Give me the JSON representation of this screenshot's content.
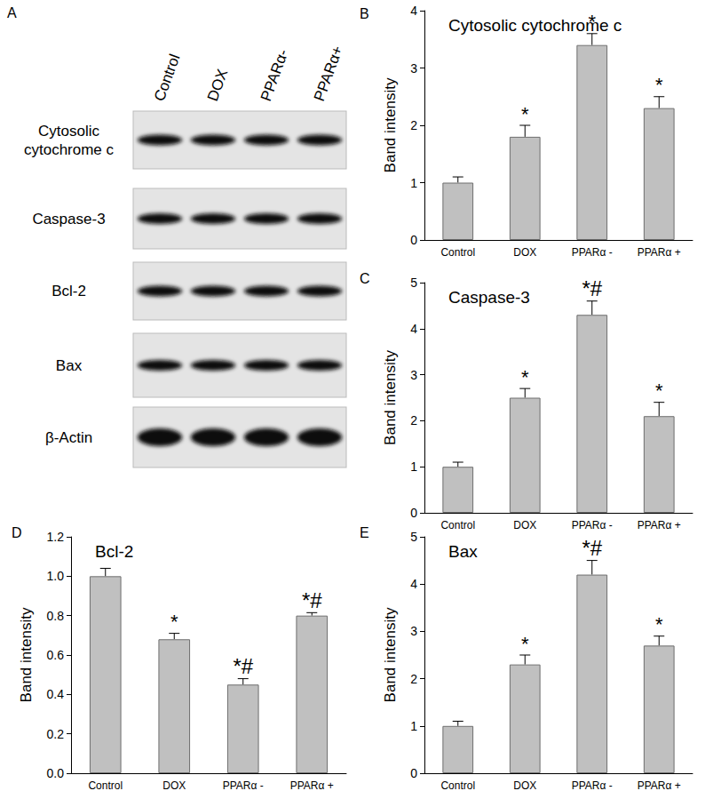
{
  "blot": {
    "panel": "A",
    "lanes": [
      "Control",
      "DOX",
      "PPARα-",
      "PPARα+"
    ],
    "rows": [
      "Cytosolic cytochrome c",
      "Caspase-3",
      "Bcl-2",
      "Bax",
      "β-Actin"
    ]
  },
  "chart_data": [
    {
      "type": "bar",
      "panel": "B",
      "title": "Cytosolic cytochrome c",
      "y_label": "Band intensity",
      "categories": [
        "Control",
        "DOX",
        "PPARα -",
        "PPARα +"
      ],
      "values": [
        1.0,
        1.8,
        3.4,
        2.3
      ],
      "errors": [
        0.1,
        0.2,
        0.2,
        0.2
      ],
      "annotations": [
        null,
        "*",
        "*",
        "*"
      ],
      "color": "#c0c0c0",
      "ylim": [
        0,
        4
      ],
      "yticks": [
        0,
        1,
        2,
        3,
        4
      ],
      "grid": false
    },
    {
      "type": "bar",
      "panel": "C",
      "title": "Caspase-3",
      "y_label": "Band intensity",
      "categories": [
        "Control",
        "DOX",
        "PPARα -",
        "PPARα +"
      ],
      "values": [
        1.0,
        2.5,
        4.3,
        2.1
      ],
      "errors": [
        0.1,
        0.2,
        0.3,
        0.3
      ],
      "annotations": [
        null,
        "*",
        "*#",
        "*"
      ],
      "color": "#c0c0c0",
      "ylim": [
        0,
        5
      ],
      "yticks": [
        0,
        1,
        2,
        3,
        4,
        5
      ],
      "grid": false
    },
    {
      "type": "bar",
      "panel": "D",
      "title": "Bcl-2",
      "y_label": "Band intensity",
      "categories": [
        "Control",
        "DOX",
        "PPARα -",
        "PPARα +"
      ],
      "values": [
        1.0,
        0.68,
        0.45,
        0.8
      ],
      "errors": [
        0.04,
        0.03,
        0.03,
        0.015
      ],
      "annotations": [
        null,
        "*",
        "*#",
        "*#"
      ],
      "color": "#c0c0c0",
      "ylim": [
        0,
        1.2
      ],
      "yticks": [
        {
          "value": 0,
          "label": "0.0"
        },
        0.2,
        0.4,
        0.6,
        0.8,
        {
          "value": 1,
          "label": "1.0"
        },
        1.2
      ],
      "grid": false
    },
    {
      "type": "bar",
      "panel": "E",
      "title": "Bax",
      "y_label": "Band intensity",
      "categories": [
        "Control",
        "DOX",
        "PPARα -",
        "PPARα +"
      ],
      "values": [
        1.0,
        2.3,
        4.2,
        2.7
      ],
      "errors": [
        0.1,
        0.2,
        0.3,
        0.2
      ],
      "annotations": [
        null,
        "*",
        "*#",
        "*"
      ],
      "color": "#c0c0c0",
      "grid": false,
      "ylim": [
        0,
        5
      ],
      "yticks": [
        0,
        1,
        2,
        3,
        4,
        5
      ]
    }
  ]
}
